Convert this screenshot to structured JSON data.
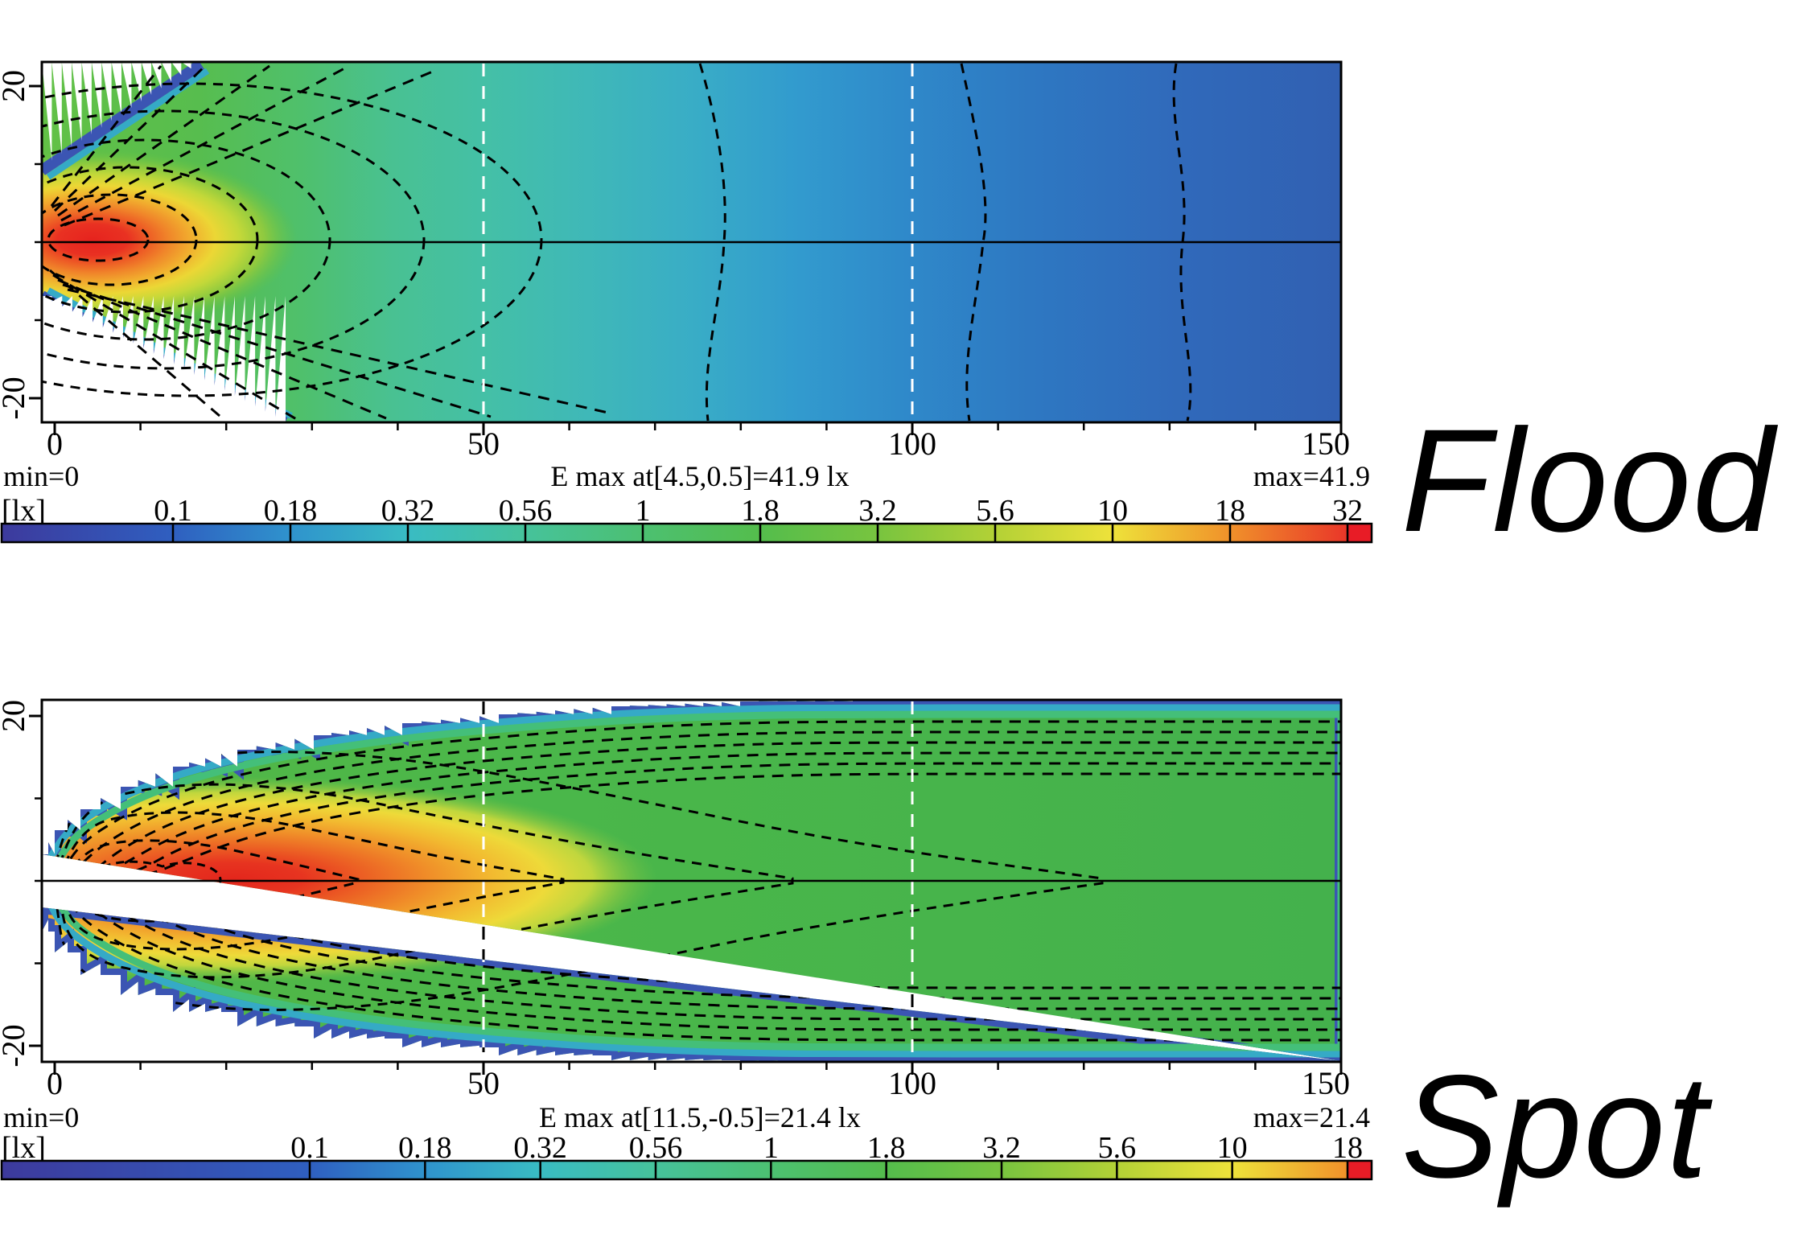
{
  "colors": {
    "frame": "#000000",
    "contour": "#000000",
    "red_tail": "#e81c26",
    "fringe_blue": "#3b55b3",
    "fringe_cyan": "#35aac6",
    "fringe_green": "#44bf79",
    "colorbar_top": [
      "#3d3a9d",
      "#2f5fc0",
      "#2f93cd",
      "#39bcc3",
      "#46c29b",
      "#4cc071",
      "#54bd4c",
      "#78c43f",
      "#b3d136",
      "#eee23a",
      "#f0912a",
      "#e93629"
    ],
    "colorbar_bottom": [
      "#3d3a9d",
      "#2f5fc0",
      "#2f93cd",
      "#39bcc3",
      "#46c29b",
      "#4cc071",
      "#54bd4c",
      "#78c43f",
      "#b3d136",
      "#eee23a",
      "#f0912a"
    ]
  },
  "flood": {
    "title": "Flood",
    "min_label": "min=0",
    "emax_label": "E max at[4.5,0.5]=41.9 lx",
    "max_label": "max=41.9",
    "unit_label": "[lx]",
    "x_tick_labels": [
      "0",
      "50",
      "100",
      "150"
    ],
    "y_tick_top": "20",
    "y_tick_bottom": "-20",
    "legend_labels": [
      "0.1",
      "0.18",
      "0.32",
      "0.56",
      "1",
      "1.8",
      "3.2",
      "5.6",
      "10",
      "18",
      "32"
    ]
  },
  "spot": {
    "title": "Spot",
    "min_label": "min=0",
    "emax_label": "E max at[11.5,-0.5]=21.4 lx",
    "max_label": "max=21.4",
    "unit_label": "[lx]",
    "x_tick_labels": [
      "0",
      "50",
      "100",
      "150"
    ],
    "y_tick_top": "20",
    "y_tick_bottom": "-20",
    "legend_labels": [
      "0.1",
      "0.18",
      "0.32",
      "0.56",
      "1",
      "1.8",
      "3.2",
      "5.6",
      "10",
      "18"
    ]
  },
  "chart_data": [
    {
      "type": "heatmap",
      "title": "Flood",
      "subtitle": "isolux (illuminance) contour map of flood beam",
      "x_range": [
        0,
        150
      ],
      "y_range": [
        -20,
        20
      ],
      "x_ticks": [
        0,
        50,
        100,
        150
      ],
      "y_ticks": [
        -20,
        20
      ],
      "gridlines_x": [
        50,
        100
      ],
      "unit": "lx",
      "min": 0,
      "max": 41.9,
      "max_at_xy": [
        4.5,
        0.5
      ],
      "caption": "E max at[4.5,0.5]=41.9 lx",
      "legend_levels_lx": [
        0.1,
        0.18,
        0.32,
        0.56,
        1,
        1.8,
        3.2,
        5.6,
        10,
        18,
        32
      ],
      "colormap_order": "dark-blue to blue to cyan to teal to green to yellow-green to yellow to orange to red (log scale)",
      "approx_centerline_lx_by_x": {
        "0": 30,
        "5": 41.9,
        "10": 25,
        "20": 7,
        "30": 3.5,
        "40": 2.2,
        "50": 1.6,
        "70": 0.9,
        "100": 0.4,
        "150": 0.15
      },
      "beam_shape": "wide wedge from origin, fills full ±20 height within ~20 units; hot 32+ lx core only near x=0-15"
    },
    {
      "type": "heatmap",
      "title": "Spot",
      "subtitle": "isolux (illuminance) contour map of spot beam",
      "x_range": [
        0,
        150
      ],
      "y_range": [
        -20,
        20
      ],
      "x_ticks": [
        0,
        50,
        100,
        150
      ],
      "y_ticks": [
        -20,
        20
      ],
      "gridlines_x": [
        50,
        100
      ],
      "unit": "lx",
      "min": 0,
      "max": 21.4,
      "max_at_xy": [
        11.5,
        -0.5
      ],
      "caption": "E max at[11.5,-0.5]=21.4 lx",
      "legend_levels_lx": [
        0.1,
        0.18,
        0.32,
        0.56,
        1,
        1.8,
        3.2,
        5.6,
        10,
        18
      ],
      "colormap_order": "dark-blue to blue to cyan to teal to green to yellow-green to yellow to orange to red (log scale)",
      "approx_centerline_lx_by_x": {
        "0": 8,
        "5": 18,
        "11.5": 21.4,
        "20": 19,
        "30": 16,
        "40": 12,
        "50": 9,
        "70": 5,
        "90": 3.2,
        "120": 2,
        "150": 1.4
      },
      "beam_shape": "narrow cone from origin, widens to full ±20 height by ~90 units; elongated 18+ lx red core from x≈5-40"
    }
  ]
}
